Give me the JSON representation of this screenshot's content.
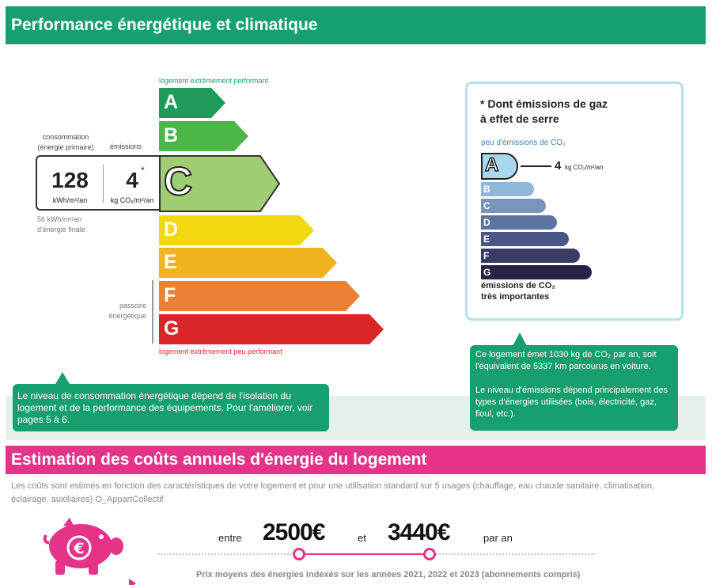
{
  "dpe": {
    "title": "Performance énergétique et climatique",
    "top_label": "logement extrêmement performant",
    "bottom_label": "logement extrêmement peu performant",
    "classes": [
      {
        "letter": "A",
        "color": "#1e9b5a"
      },
      {
        "letter": "B",
        "color": "#4cb649"
      },
      {
        "letter": "C",
        "color": "#9fcd74"
      },
      {
        "letter": "D",
        "color": "#f1d80f"
      },
      {
        "letter": "E",
        "color": "#f0b420"
      },
      {
        "letter": "F",
        "color": "#ec8035"
      },
      {
        "letter": "G",
        "color": "#d92727"
      }
    ],
    "current_class": "C",
    "passoire": "passoire énergétique",
    "consumption_label": "consommation (énergie primaire)",
    "emissions_label": "émissions",
    "consumption_value": "128",
    "consumption_unit": "kWh/m²/an",
    "emissions_value": "4",
    "emissions_star": "*",
    "emissions_unit": "kg CO₂/m²/an",
    "final_energy": "56 kWh/m²/an d'énergie finale",
    "callout": "Le niveau de consommation énergétique dépend de l'isolation du logement et de la performance des équipements. Pour l'améliorer, voir pages 5 à 6."
  },
  "ges": {
    "title_line1": "* Dont émissions de gaz",
    "title_line2": "à effet de serre",
    "top_label": "peu d'émissions de CO₂",
    "current_letter": "A",
    "value": "4",
    "unit": "kg CO₂/m²/an",
    "classes": [
      {
        "letter": "B",
        "color": "#8fb8d8"
      },
      {
        "letter": "C",
        "color": "#7795bd"
      },
      {
        "letter": "D",
        "color": "#5e74a0"
      },
      {
        "letter": "E",
        "color": "#4b5685"
      },
      {
        "letter": "F",
        "color": "#3a3c68"
      },
      {
        "letter": "G",
        "color": "#282346"
      }
    ],
    "bottom_line1": "émissions de CO₂",
    "bottom_line2": "très importantes",
    "callout_line1": "Ce logement émet 1030 kg de CO₂ par an, soit l'équivalent de 5337 km parcourus en voiture.",
    "callout_line2": "Le niveau d'émissions dépend principalement des types d'énergies utilisées (bois, électricité, gaz, fioul, etc.)."
  },
  "costs": {
    "title": "Estimation des coûts annuels d'énergie du logement",
    "description": "Les coûts sont estimés en fonction des caractéristiques de votre logement et pour une utilisation standard sur 5 usages (chauffage, eau chaude sanitaire, climatisation, éclairage, auxiliaires) O_AppartCollectif",
    "word_between": "entre",
    "min": "2500€",
    "word_and": "et",
    "max": "3440€",
    "word_per": "par an",
    "note": "Prix moyens des énergies indexés sur les années 2021, 2022 et 2023 (abonnements compris)",
    "accent_color": "#e5338a"
  }
}
